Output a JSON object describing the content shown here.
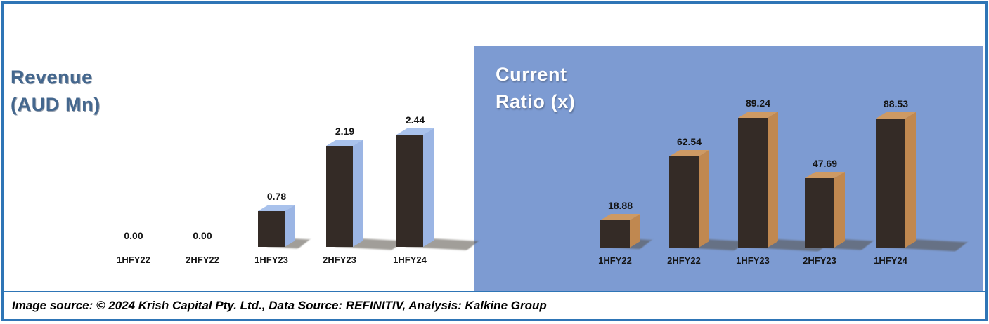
{
  "frame": {
    "border_color": "#2E75B6",
    "background": "#FFFFFF"
  },
  "caption": {
    "text": "Image source: © 2024 Krish Capital Pty. Ltd., Data Source: REFINITIV, Analysis: Kalkine Group"
  },
  "chart_data": [
    {
      "type": "bar",
      "style": "3d-column",
      "title": "Revenue (AUD Mn)",
      "title_lines": [
        "Revenue",
        "(AUD Mn)"
      ],
      "title_color": "#44678E",
      "background": "#FFFFFF",
      "categories": [
        "1HFY22",
        "2HFY22",
        "1HFY23",
        "2HFY23",
        "1HFY24"
      ],
      "values": [
        0.0,
        0.0,
        0.78,
        2.19,
        2.44
      ],
      "value_labels": [
        "0.00",
        "0.00",
        "0.78",
        "2.19",
        "2.44"
      ],
      "ylim": [
        0,
        2.44
      ],
      "grid": false,
      "legend": false,
      "axes_hidden": true,
      "bar_colors": {
        "front": "#342B26",
        "side": "#9BB5E4",
        "top": "#A9C2EC"
      },
      "label_color": "#141414"
    },
    {
      "type": "bar",
      "style": "3d-column",
      "title": "Current Ratio (x)",
      "title_lines": [
        "Current",
        "Ratio (x)"
      ],
      "title_color": "#FFFFFF",
      "background": "#7D9BD2",
      "categories": [
        "1HFY22",
        "2HFY22",
        "1HFY23",
        "2HFY23",
        "1HFY24"
      ],
      "values": [
        18.88,
        62.54,
        89.24,
        47.69,
        88.53
      ],
      "value_labels": [
        "18.88",
        "62.54",
        "89.24",
        "47.69",
        "88.53"
      ],
      "ylim": [
        0,
        89.24
      ],
      "grid": false,
      "legend": false,
      "axes_hidden": true,
      "bar_colors": {
        "front": "#342B26",
        "side": "#C08850",
        "top": "#CE9A64"
      },
      "label_color": "#141414"
    }
  ]
}
